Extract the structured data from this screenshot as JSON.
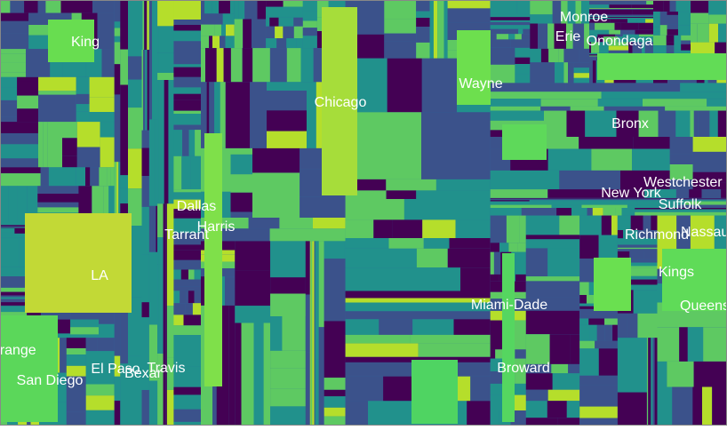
{
  "chart_data": {
    "type": "heatmap",
    "subtype": "treemap",
    "title": "",
    "colormap": [
      "#440154",
      "#3b528b",
      "#21918c",
      "#5ec962",
      "#b5de2b",
      "#fde725"
    ],
    "labels": [
      "King",
      "Chicago",
      "Wayne",
      "Monroe",
      "Erie",
      "Onondaga",
      "Bronx",
      "Dallas",
      "Harris",
      "Tarrant",
      "LA",
      "New York",
      "Westchester",
      "Suffolk",
      "Richmond",
      "Nassau",
      "Kings",
      "Queens",
      "Miami-Dade",
      "Broward",
      "Orange",
      "San Diego",
      "El Paso",
      "Bexar",
      "Travis"
    ]
  }
}
